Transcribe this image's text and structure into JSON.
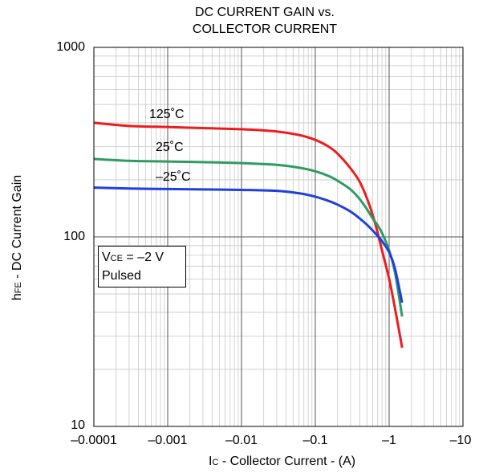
{
  "chart_data": {
    "type": "line",
    "title": "DC CURRENT GAIN vs.",
    "title_line2": "COLLECTOR CURRENT",
    "xlabel_main": "I",
    "xlabel_sub": "C",
    "xlabel_rest": " - Collector Current - (A)",
    "ylabel_main": "h",
    "ylabel_sub": "FE",
    "ylabel_rest": " - DC Current Gain",
    "x_scale": "log (magnitude, negative values)",
    "y_scale": "log",
    "xlim": [
      -0.0001,
      -10
    ],
    "ylim": [
      10,
      1000
    ],
    "x_ticks": [
      {
        "value": -0.0001,
        "label": "–0.0001"
      },
      {
        "value": -0.001,
        "label": "–0.001"
      },
      {
        "value": -0.01,
        "label": "–0.01"
      },
      {
        "value": -0.1,
        "label": "–0.1"
      },
      {
        "value": -1,
        "label": "–1"
      },
      {
        "value": -10,
        "label": "–10"
      }
    ],
    "y_ticks": [
      {
        "value": 10,
        "label": "10"
      },
      {
        "value": 100,
        "label": "100"
      },
      {
        "value": 1000,
        "label": "1000"
      }
    ],
    "grid": true,
    "conditions": {
      "line1_main": "V",
      "line1_sub": "CE",
      "line1_rest": " = –2 V",
      "line2": "Pulsed"
    },
    "series": [
      {
        "name": "125˚C",
        "color": "#ee1c1c",
        "x": [
          -0.0001,
          -0.0003,
          -0.001,
          -0.003,
          -0.01,
          -0.03,
          -0.06,
          -0.1,
          -0.15,
          -0.2,
          -0.3,
          -0.4,
          -0.5,
          -0.6,
          -0.7,
          -0.8,
          -1.0,
          -1.2,
          -1.5
        ],
        "y": [
          400,
          385,
          380,
          375,
          370,
          360,
          345,
          325,
          300,
          275,
          230,
          195,
          160,
          130,
          105,
          85,
          60,
          42,
          26
        ]
      },
      {
        "name": "25˚C",
        "color": "#2e9b62",
        "x": [
          -0.0001,
          -0.0003,
          -0.001,
          -0.003,
          -0.01,
          -0.03,
          -0.06,
          -0.1,
          -0.15,
          -0.2,
          -0.3,
          -0.4,
          -0.5,
          -0.6,
          -0.7,
          -0.8,
          -1.0,
          -1.2,
          -1.5
        ],
        "y": [
          258,
          252,
          250,
          248,
          245,
          240,
          232,
          222,
          210,
          198,
          178,
          158,
          140,
          125,
          115,
          105,
          85,
          65,
          38
        ]
      },
      {
        "name": "–25˚C",
        "color": "#1f3fe0",
        "x": [
          -0.0001,
          -0.0003,
          -0.001,
          -0.003,
          -0.01,
          -0.03,
          -0.06,
          -0.1,
          -0.15,
          -0.2,
          -0.3,
          -0.4,
          -0.5,
          -0.6,
          -0.7,
          -0.8,
          -1.0,
          -1.2,
          -1.5
        ],
        "y": [
          182,
          180,
          179,
          178,
          177,
          175,
          170,
          163,
          155,
          148,
          136,
          125,
          116,
          108,
          101,
          95,
          83,
          68,
          45
        ]
      }
    ]
  }
}
